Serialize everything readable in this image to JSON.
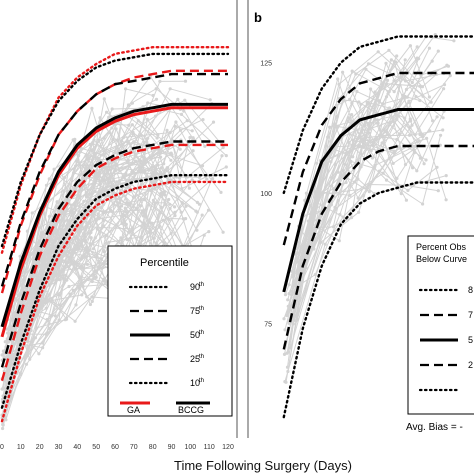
{
  "figure": {
    "xlabel": "Time Following Surgery (Days)"
  },
  "chart_data": [
    {
      "type": "line",
      "panel": "a",
      "x": [
        0,
        10,
        20,
        30,
        40,
        50,
        60,
        70,
        80,
        90,
        100,
        110,
        120
      ],
      "x_tick_labels": [
        "0",
        "10",
        "20",
        "30",
        "40",
        "50",
        "60",
        "70",
        "80",
        "90",
        "100",
        "110",
        "120"
      ],
      "xlim": [
        0,
        120
      ],
      "legend": {
        "title": "Percentile",
        "entries": [
          {
            "label": "90",
            "sup": "th",
            "style": "dotted"
          },
          {
            "label": "75",
            "sup": "th",
            "style": "dashed"
          },
          {
            "label": "50",
            "sup": "th",
            "style": "solid"
          },
          {
            "label": "25",
            "sup": "th",
            "style": "dashed"
          },
          {
            "label": "10",
            "sup": "th",
            "style": "dotted"
          }
        ],
        "methods": [
          {
            "label": "GA",
            "color": "#e8191a"
          },
          {
            "label": "BCCG",
            "color": "#000000"
          }
        ],
        "placement": "bottom-right"
      },
      "series": [
        {
          "method": "GA",
          "percentile": 90,
          "values": [
            60,
            80,
            95,
            106,
            112,
            116,
            119,
            120,
            121,
            121,
            121,
            121,
            121
          ]
        },
        {
          "method": "GA",
          "percentile": 75,
          "values": [
            48,
            68,
            83,
            95,
            102,
            107,
            110,
            112,
            113,
            114,
            114,
            114,
            114
          ]
        },
        {
          "method": "GA",
          "percentile": 50,
          "values": [
            35,
            55,
            71,
            83,
            91,
            96,
            99,
            101,
            102,
            103,
            103,
            103,
            103
          ]
        },
        {
          "method": "GA",
          "percentile": 25,
          "values": [
            22,
            42,
            59,
            71,
            79,
            85,
            88,
            90,
            91,
            92,
            92,
            92,
            92
          ]
        },
        {
          "method": "GA",
          "percentile": 10,
          "values": [
            10,
            30,
            47,
            59,
            68,
            74,
            77,
            79,
            80,
            81,
            81,
            81,
            81
          ]
        },
        {
          "method": "BCCG",
          "percentile": 90,
          "values": [
            62,
            81,
            95,
            105,
            111,
            115,
            117,
            118,
            119,
            119,
            119,
            119,
            119
          ]
        },
        {
          "method": "BCCG",
          "percentile": 75,
          "values": [
            50,
            69,
            84,
            95,
            102,
            107,
            110,
            111,
            112,
            113,
            113,
            113,
            113
          ]
        },
        {
          "method": "BCCG",
          "percentile": 50,
          "values": [
            38,
            57,
            72,
            84,
            92,
            97,
            100,
            102,
            103,
            104,
            104,
            104,
            104
          ]
        },
        {
          "method": "BCCG",
          "percentile": 25,
          "values": [
            26,
            45,
            61,
            73,
            81,
            86,
            89,
            91,
            92,
            93,
            93,
            93,
            93
          ]
        },
        {
          "method": "BCCG",
          "percentile": 10,
          "values": [
            14,
            33,
            49,
            62,
            70,
            76,
            79,
            81,
            82,
            83,
            83,
            83,
            83
          ]
        }
      ],
      "raw_trajectories_color": "#d3d3d3"
    },
    {
      "type": "line",
      "panel": "b",
      "panel_label": "b",
      "y_tick_labels": [
        "75",
        "100",
        "125"
      ],
      "y_ticks": [
        75,
        100,
        125
      ],
      "ylim": [
        53,
        137
      ],
      "x": [
        0,
        10,
        20,
        30,
        40,
        50,
        60,
        70,
        80,
        90,
        100
      ],
      "series": [
        {
          "percentile": 90,
          "style": "dotted",
          "values": [
            100,
            112,
            120,
            125,
            128,
            129,
            130,
            130,
            130,
            130,
            130
          ]
        },
        {
          "percentile": 75,
          "style": "dashed",
          "values": [
            90,
            104,
            113,
            118,
            121,
            122,
            123,
            123,
            123,
            123,
            123
          ]
        },
        {
          "percentile": 50,
          "style": "solid",
          "values": [
            81,
            96,
            106,
            111,
            114,
            115,
            116,
            116,
            116,
            116,
            116
          ]
        },
        {
          "percentile": 25,
          "style": "dashed",
          "values": [
            70,
            86,
            96,
            102,
            106,
            108,
            109,
            109,
            109,
            109,
            109
          ]
        },
        {
          "percentile": 10,
          "style": "dotted",
          "values": [
            57,
            74,
            86,
            94,
            98,
            100,
            101,
            102,
            102,
            102,
            102
          ]
        }
      ],
      "legend": {
        "title_line1": "Percent Obs",
        "title_line2": "Below Curve",
        "entries": [
          {
            "label": "8",
            "style": "dotted"
          },
          {
            "label": "7",
            "style": "dashed"
          },
          {
            "label": "5",
            "style": "solid"
          },
          {
            "label": "2",
            "style": "dashed"
          },
          {
            "label": "",
            "style": "dotted"
          }
        ],
        "placement": "bottom-right"
      },
      "annotation": "Avg. Bias = -",
      "raw_trajectories_color": "#d3d3d3"
    }
  ]
}
